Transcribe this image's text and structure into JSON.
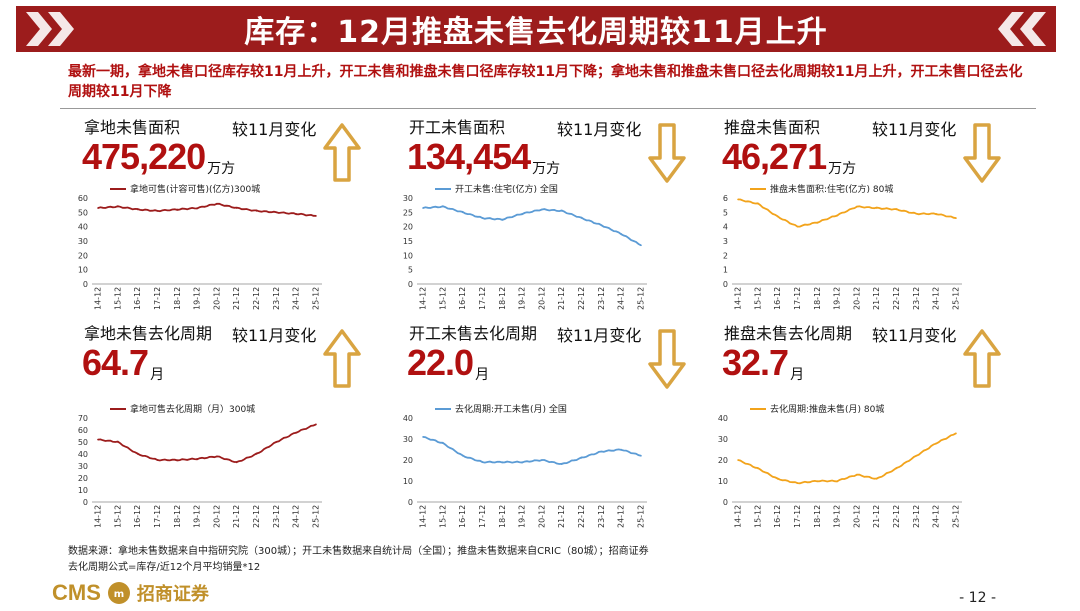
{
  "header": {
    "title": "库存：12月推盘未售去化周期较11月上升"
  },
  "summary": "最新一期，拿地未售口径库存较11月上升，开工未售和推盘未售口径库存较11月下降；拿地未售和推盘未售口径去化周期较11月上升，开工未售口径去化周期较11月下降",
  "xticks": [
    "14-12",
    "15-12",
    "16-12",
    "17-12",
    "18-12",
    "19-12",
    "20-12",
    "21-12",
    "22-12",
    "23-12",
    "24-12",
    "25-12"
  ],
  "colors": {
    "dark_red": "#9c1c1c",
    "blue": "#5b9bd5",
    "orange": "#f2a31b",
    "arrow_gold": "#d9a441"
  },
  "panels": [
    {
      "title": "拿地未售面积",
      "change": "较11月变化",
      "value": "475,220",
      "unit": "万方",
      "direction": "up",
      "icon": "up-arrow-icon"
    },
    {
      "title": "开工未售面积",
      "change": "较11月变化",
      "value": "134,454",
      "unit": "万方",
      "direction": "down",
      "icon": "down-arrow-icon"
    },
    {
      "title": "推盘未售面积",
      "change": "较11月变化",
      "value": "46,271",
      "unit": "万方",
      "direction": "down",
      "icon": "down-arrow-icon"
    },
    {
      "title": "拿地未售去化周期",
      "change": "较11月变化",
      "value": "64.7",
      "unit": "月",
      "direction": "up",
      "icon": "up-arrow-icon"
    },
    {
      "title": "开工未售去化周期",
      "change": "较11月变化",
      "value": "22.0",
      "unit": "月",
      "direction": "down",
      "icon": "down-arrow-icon"
    },
    {
      "title": "推盘未售去化周期",
      "change": "较11月变化",
      "value": "32.7",
      "unit": "月",
      "direction": "up",
      "icon": "up-arrow-icon"
    }
  ],
  "chart_data": [
    {
      "type": "line",
      "legend": "拿地可售(计容可售)(亿方)300城",
      "ylim": [
        0,
        60
      ],
      "yticks": [
        0,
        10,
        20,
        30,
        40,
        50,
        60
      ],
      "color": "#9c1c1c",
      "x": [
        "14-12",
        "15-12",
        "16-12",
        "17-12",
        "18-12",
        "19-12",
        "20-12",
        "21-12",
        "22-12",
        "23-12",
        "24-12",
        "25-12"
      ],
      "values": [
        53,
        54,
        52,
        51,
        52,
        53,
        56,
        53,
        51,
        50,
        49,
        47.5
      ]
    },
    {
      "type": "line",
      "legend": "开工未售:住宅(亿方) 全国",
      "ylim": [
        0,
        30
      ],
      "yticks": [
        0,
        5,
        10,
        15,
        20,
        25,
        30
      ],
      "color": "#5b9bd5",
      "x": [
        "14-12",
        "15-12",
        "16-12",
        "17-12",
        "18-12",
        "19-12",
        "20-12",
        "21-12",
        "22-12",
        "23-12",
        "24-12",
        "25-12"
      ],
      "values": [
        26.5,
        27,
        25,
        23,
        22.5,
        24.5,
        26,
        25.5,
        23,
        20.5,
        17.5,
        13.5
      ]
    },
    {
      "type": "line",
      "legend": "推盘未售面积:住宅(亿方) 80城",
      "ylim": [
        0,
        6
      ],
      "yticks": [
        0,
        1,
        2,
        3,
        4,
        5,
        6
      ],
      "color": "#f2a31b",
      "x": [
        "14-12",
        "15-12",
        "16-12",
        "17-12",
        "18-12",
        "19-12",
        "20-12",
        "21-12",
        "22-12",
        "23-12",
        "24-12",
        "25-12"
      ],
      "values": [
        5.9,
        5.6,
        4.7,
        4.0,
        4.3,
        4.8,
        5.4,
        5.3,
        5.2,
        4.9,
        4.9,
        4.6
      ]
    },
    {
      "type": "line",
      "legend": "拿地可售去化周期（月）300城",
      "ylim": [
        0,
        70
      ],
      "yticks": [
        0,
        10,
        20,
        30,
        40,
        50,
        60,
        70
      ],
      "color": "#9c1c1c",
      "x": [
        "14-12",
        "15-12",
        "16-12",
        "17-12",
        "18-12",
        "19-12",
        "20-12",
        "21-12",
        "22-12",
        "23-12",
        "24-12",
        "25-12"
      ],
      "values": [
        52,
        50,
        40,
        35,
        35,
        36,
        38,
        33,
        40,
        50,
        58,
        64.7
      ]
    },
    {
      "type": "line",
      "legend": "去化周期:开工未售(月) 全国",
      "ylim": [
        0,
        40
      ],
      "yticks": [
        0,
        10,
        20,
        30,
        40
      ],
      "color": "#5b9bd5",
      "x": [
        "14-12",
        "15-12",
        "16-12",
        "17-12",
        "18-12",
        "19-12",
        "20-12",
        "21-12",
        "22-12",
        "23-12",
        "24-12",
        "25-12"
      ],
      "values": [
        31,
        28,
        22,
        19,
        19,
        19,
        20,
        18,
        21,
        24,
        25,
        22
      ]
    },
    {
      "type": "line",
      "legend": "去化周期:推盘未售(月) 80城",
      "ylim": [
        0,
        40
      ],
      "yticks": [
        0,
        10,
        20,
        30,
        40
      ],
      "color": "#f2a31b",
      "x": [
        "14-12",
        "15-12",
        "16-12",
        "17-12",
        "18-12",
        "19-12",
        "20-12",
        "21-12",
        "22-12",
        "23-12",
        "24-12",
        "25-12"
      ],
      "values": [
        20,
        16,
        11,
        9,
        10,
        10,
        13,
        11,
        16,
        22,
        28,
        32.7
      ]
    }
  ],
  "footer": {
    "line1": "数据来源：拿地未售数据来自中指研究院（300城）；开工未售数据来自统计局（全国）；推盘未售数据来自CRIC（80城）；招商证券",
    "line2": "去化周期公式=库存/近12个月平均销量*12"
  },
  "logo": {
    "text1": "CMS",
    "text2": "招商证券"
  },
  "page_number": "- 12 -"
}
